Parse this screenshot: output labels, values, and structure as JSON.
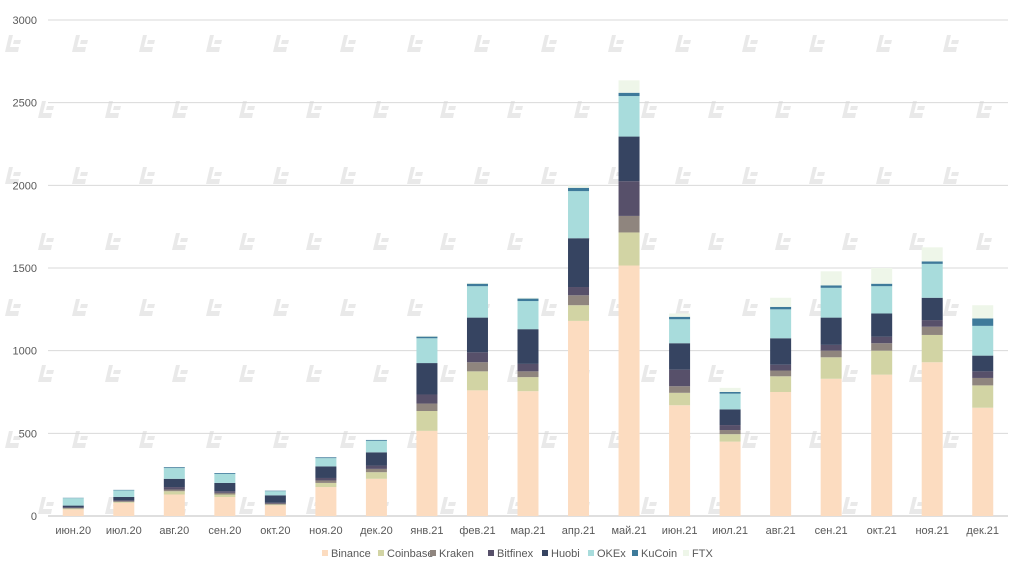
{
  "chart_data": {
    "type": "bar",
    "stacked": true,
    "title": "",
    "xlabel": "",
    "ylabel": "",
    "ylim": [
      0,
      3000
    ],
    "yticks": [
      0,
      500,
      1000,
      1500,
      2000,
      2500,
      3000
    ],
    "grid": true,
    "legend_position": "bottom",
    "categories": [
      "июн.20",
      "июл.20",
      "авг.20",
      "сен.20",
      "окт.20",
      "ноя.20",
      "дек.20",
      "янв.21",
      "фев.21",
      "мар.21",
      "апр.21",
      "май.21",
      "июн.21",
      "июл.21",
      "авг.21",
      "сен.21",
      "окт.21",
      "ноя.21",
      "дек.21"
    ],
    "series": [
      {
        "name": "Binance",
        "color": "#fcdcc0",
        "values": [
          40,
          80,
          130,
          115,
          65,
          175,
          225,
          515,
          760,
          755,
          1180,
          1515,
          670,
          450,
          750,
          830,
          855,
          930,
          655
        ]
      },
      {
        "name": "Coinbase",
        "color": "#d2d4a4",
        "values": [
          5,
          5,
          20,
          15,
          5,
          25,
          40,
          120,
          115,
          85,
          95,
          200,
          75,
          45,
          95,
          130,
          145,
          165,
          135
        ]
      },
      {
        "name": "Kraken",
        "color": "#8f857e",
        "values": [
          3,
          5,
          10,
          10,
          5,
          15,
          20,
          45,
          55,
          35,
          60,
          100,
          40,
          25,
          35,
          40,
          45,
          50,
          45
        ]
      },
      {
        "name": "Bitfinex",
        "color": "#57506a",
        "values": [
          5,
          5,
          15,
          10,
          5,
          15,
          20,
          55,
          60,
          45,
          50,
          210,
          100,
          30,
          35,
          35,
          40,
          40,
          40
        ]
      },
      {
        "name": "Huobi",
        "color": "#364461",
        "values": [
          10,
          20,
          50,
          50,
          45,
          70,
          80,
          190,
          210,
          210,
          295,
          270,
          160,
          95,
          160,
          165,
          140,
          135,
          95
        ]
      },
      {
        "name": "OKEx",
        "color": "#a8dcdc",
        "values": [
          45,
          40,
          65,
          55,
          25,
          50,
          70,
          150,
          190,
          170,
          285,
          245,
          145,
          95,
          175,
          180,
          165,
          205,
          180
        ]
      },
      {
        "name": "KuCoin",
        "color": "#3e7a9a",
        "values": [
          2,
          3,
          5,
          5,
          3,
          5,
          5,
          10,
          15,
          15,
          20,
          20,
          15,
          10,
          15,
          15,
          15,
          15,
          45
        ]
      },
      {
        "name": "FTX",
        "color": "#eef6e9",
        "values": [
          0,
          0,
          0,
          0,
          0,
          0,
          0,
          5,
          5,
          5,
          15,
          75,
          20,
          25,
          55,
          85,
          95,
          85,
          80
        ]
      }
    ]
  }
}
